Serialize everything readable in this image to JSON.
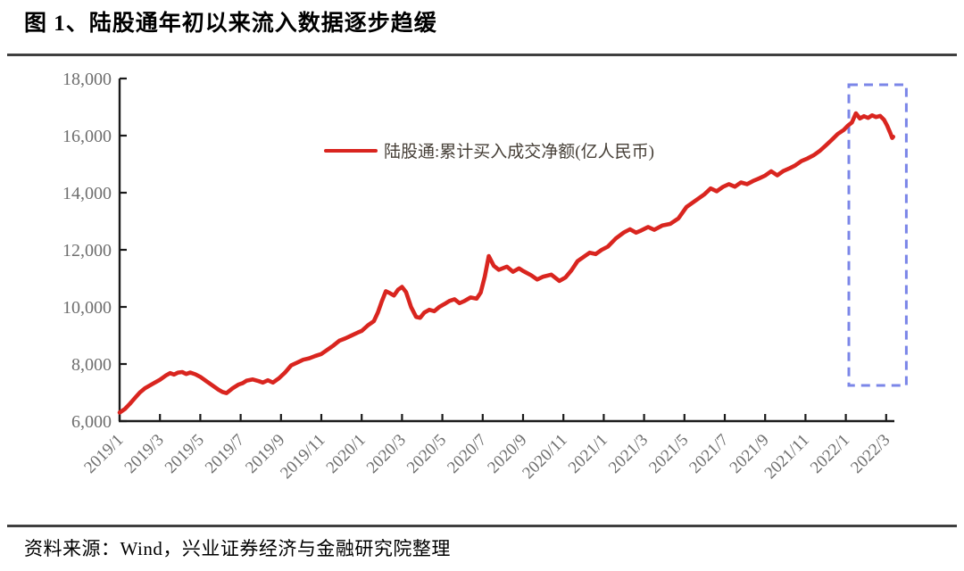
{
  "title": "图 1、陆股通年初以来流入数据逐步趋缓",
  "source_note": "资料来源：Wind，兴业证券经济与金融研究院整理",
  "colors": {
    "line": "#d9251f",
    "highlight_box": "#7b86e8",
    "rule": "#3f3f3f",
    "axis": "#1a1a1a",
    "tick_label": "#6e6e6e",
    "legend_text": "#474038"
  },
  "legend": {
    "label": "陆股通:累计买入成交净额(亿人民币)",
    "marker_color": "#d9251f"
  },
  "chart_data": {
    "type": "line",
    "title": "陆股通年初以来流入数据逐步趋缓",
    "ylabel": "",
    "xlabel": "",
    "ylim": [
      6000,
      18000
    ],
    "grid": false,
    "legend_position": "top-center",
    "y_ticks": [
      6000,
      8000,
      10000,
      12000,
      14000,
      16000,
      18000
    ],
    "y_tick_labels": [
      "6,000",
      "8,000",
      "10,000",
      "12,000",
      "14,000",
      "16,000",
      "18,000"
    ],
    "x_tick_months": [
      0,
      2,
      4,
      6,
      8,
      10,
      12,
      14,
      16,
      18,
      20,
      22,
      24,
      26,
      28,
      30,
      32,
      34,
      36,
      38
    ],
    "x_tick_labels": [
      "2019/1",
      "2019/3",
      "2019/5",
      "2019/7",
      "2019/9",
      "2019/11",
      "2020/1",
      "2020/3",
      "2020/5",
      "2020/7",
      "2020/9",
      "2020/11",
      "2021/1",
      "2021/3",
      "2021/5",
      "2021/7",
      "2021/9",
      "2021/11",
      "2022/1",
      "2022/3"
    ],
    "series": [
      {
        "name": "陆股通:累计买入成交净额(亿人民币)",
        "color": "#d9251f",
        "points": [
          [
            0,
            6300
          ],
          [
            0.25,
            6420
          ],
          [
            0.5,
            6600
          ],
          [
            0.75,
            6800
          ],
          [
            1,
            7000
          ],
          [
            1.25,
            7150
          ],
          [
            1.5,
            7250
          ],
          [
            1.75,
            7350
          ],
          [
            2,
            7450
          ],
          [
            2.3,
            7600
          ],
          [
            2.5,
            7680
          ],
          [
            2.7,
            7630
          ],
          [
            2.9,
            7700
          ],
          [
            3.1,
            7720
          ],
          [
            3.3,
            7650
          ],
          [
            3.5,
            7700
          ],
          [
            3.75,
            7640
          ],
          [
            4,
            7550
          ],
          [
            4.3,
            7400
          ],
          [
            4.6,
            7250
          ],
          [
            4.9,
            7100
          ],
          [
            5.1,
            7020
          ],
          [
            5.3,
            6980
          ],
          [
            5.6,
            7150
          ],
          [
            5.9,
            7280
          ],
          [
            6.1,
            7330
          ],
          [
            6.3,
            7420
          ],
          [
            6.6,
            7460
          ],
          [
            6.9,
            7400
          ],
          [
            7.1,
            7350
          ],
          [
            7.35,
            7430
          ],
          [
            7.6,
            7350
          ],
          [
            7.9,
            7500
          ],
          [
            8.2,
            7700
          ],
          [
            8.5,
            7950
          ],
          [
            8.8,
            8050
          ],
          [
            9.1,
            8150
          ],
          [
            9.4,
            8200
          ],
          [
            9.7,
            8280
          ],
          [
            10,
            8350
          ],
          [
            10.3,
            8500
          ],
          [
            10.6,
            8650
          ],
          [
            10.9,
            8820
          ],
          [
            11.2,
            8900
          ],
          [
            11.5,
            9000
          ],
          [
            11.8,
            9100
          ],
          [
            12,
            9160
          ],
          [
            12.3,
            9350
          ],
          [
            12.6,
            9500
          ],
          [
            12.8,
            9800
          ],
          [
            13,
            10200
          ],
          [
            13.2,
            10550
          ],
          [
            13.4,
            10480
          ],
          [
            13.6,
            10400
          ],
          [
            13.8,
            10600
          ],
          [
            14,
            10700
          ],
          [
            14.2,
            10520
          ],
          [
            14.45,
            9990
          ],
          [
            14.7,
            9650
          ],
          [
            14.9,
            9620
          ],
          [
            15.1,
            9800
          ],
          [
            15.35,
            9900
          ],
          [
            15.6,
            9850
          ],
          [
            15.85,
            10000
          ],
          [
            16.1,
            10100
          ],
          [
            16.35,
            10210
          ],
          [
            16.6,
            10270
          ],
          [
            16.85,
            10130
          ],
          [
            17.1,
            10210
          ],
          [
            17.4,
            10330
          ],
          [
            17.7,
            10290
          ],
          [
            17.9,
            10500
          ],
          [
            18.1,
            11060
          ],
          [
            18.3,
            11780
          ],
          [
            18.55,
            11440
          ],
          [
            18.8,
            11300
          ],
          [
            19.2,
            11410
          ],
          [
            19.5,
            11230
          ],
          [
            19.8,
            11350
          ],
          [
            20,
            11260
          ],
          [
            20.4,
            11110
          ],
          [
            20.7,
            10960
          ],
          [
            21,
            11060
          ],
          [
            21.4,
            11130
          ],
          [
            21.8,
            10910
          ],
          [
            22.1,
            11030
          ],
          [
            22.4,
            11280
          ],
          [
            22.7,
            11600
          ],
          [
            23,
            11750
          ],
          [
            23.3,
            11900
          ],
          [
            23.6,
            11850
          ],
          [
            23.9,
            12000
          ],
          [
            24.2,
            12110
          ],
          [
            24.6,
            12400
          ],
          [
            25,
            12610
          ],
          [
            25.3,
            12720
          ],
          [
            25.6,
            12600
          ],
          [
            25.8,
            12660
          ],
          [
            26.2,
            12800
          ],
          [
            26.5,
            12700
          ],
          [
            26.9,
            12850
          ],
          [
            27.3,
            12910
          ],
          [
            27.7,
            13100
          ],
          [
            28.1,
            13500
          ],
          [
            28.6,
            13750
          ],
          [
            29,
            13950
          ],
          [
            29.3,
            14150
          ],
          [
            29.6,
            14050
          ],
          [
            29.9,
            14200
          ],
          [
            30.2,
            14300
          ],
          [
            30.5,
            14210
          ],
          [
            30.8,
            14360
          ],
          [
            31.1,
            14300
          ],
          [
            31.4,
            14410
          ],
          [
            31.7,
            14500
          ],
          [
            32,
            14600
          ],
          [
            32.3,
            14750
          ],
          [
            32.6,
            14610
          ],
          [
            32.9,
            14760
          ],
          [
            33.2,
            14850
          ],
          [
            33.5,
            14960
          ],
          [
            33.8,
            15110
          ],
          [
            34.1,
            15200
          ],
          [
            34.4,
            15310
          ],
          [
            34.7,
            15460
          ],
          [
            35,
            15650
          ],
          [
            35.3,
            15850
          ],
          [
            35.6,
            16060
          ],
          [
            35.9,
            16200
          ],
          [
            36.1,
            16350
          ],
          [
            36.3,
            16460
          ],
          [
            36.5,
            16780
          ],
          [
            36.7,
            16600
          ],
          [
            36.9,
            16680
          ],
          [
            37.1,
            16620
          ],
          [
            37.3,
            16710
          ],
          [
            37.5,
            16650
          ],
          [
            37.7,
            16690
          ],
          [
            37.9,
            16550
          ],
          [
            38.05,
            16350
          ],
          [
            38.2,
            16100
          ],
          [
            38.3,
            15920
          ],
          [
            38.35,
            15960
          ]
        ]
      }
    ],
    "annotations": [
      {
        "type": "dashed-box",
        "label": "highlight-recent-slowdown",
        "month_from": 36.15,
        "month_to": 39.0,
        "value_from": 7250,
        "value_to": 17780,
        "color": "#7b86e8"
      }
    ]
  }
}
